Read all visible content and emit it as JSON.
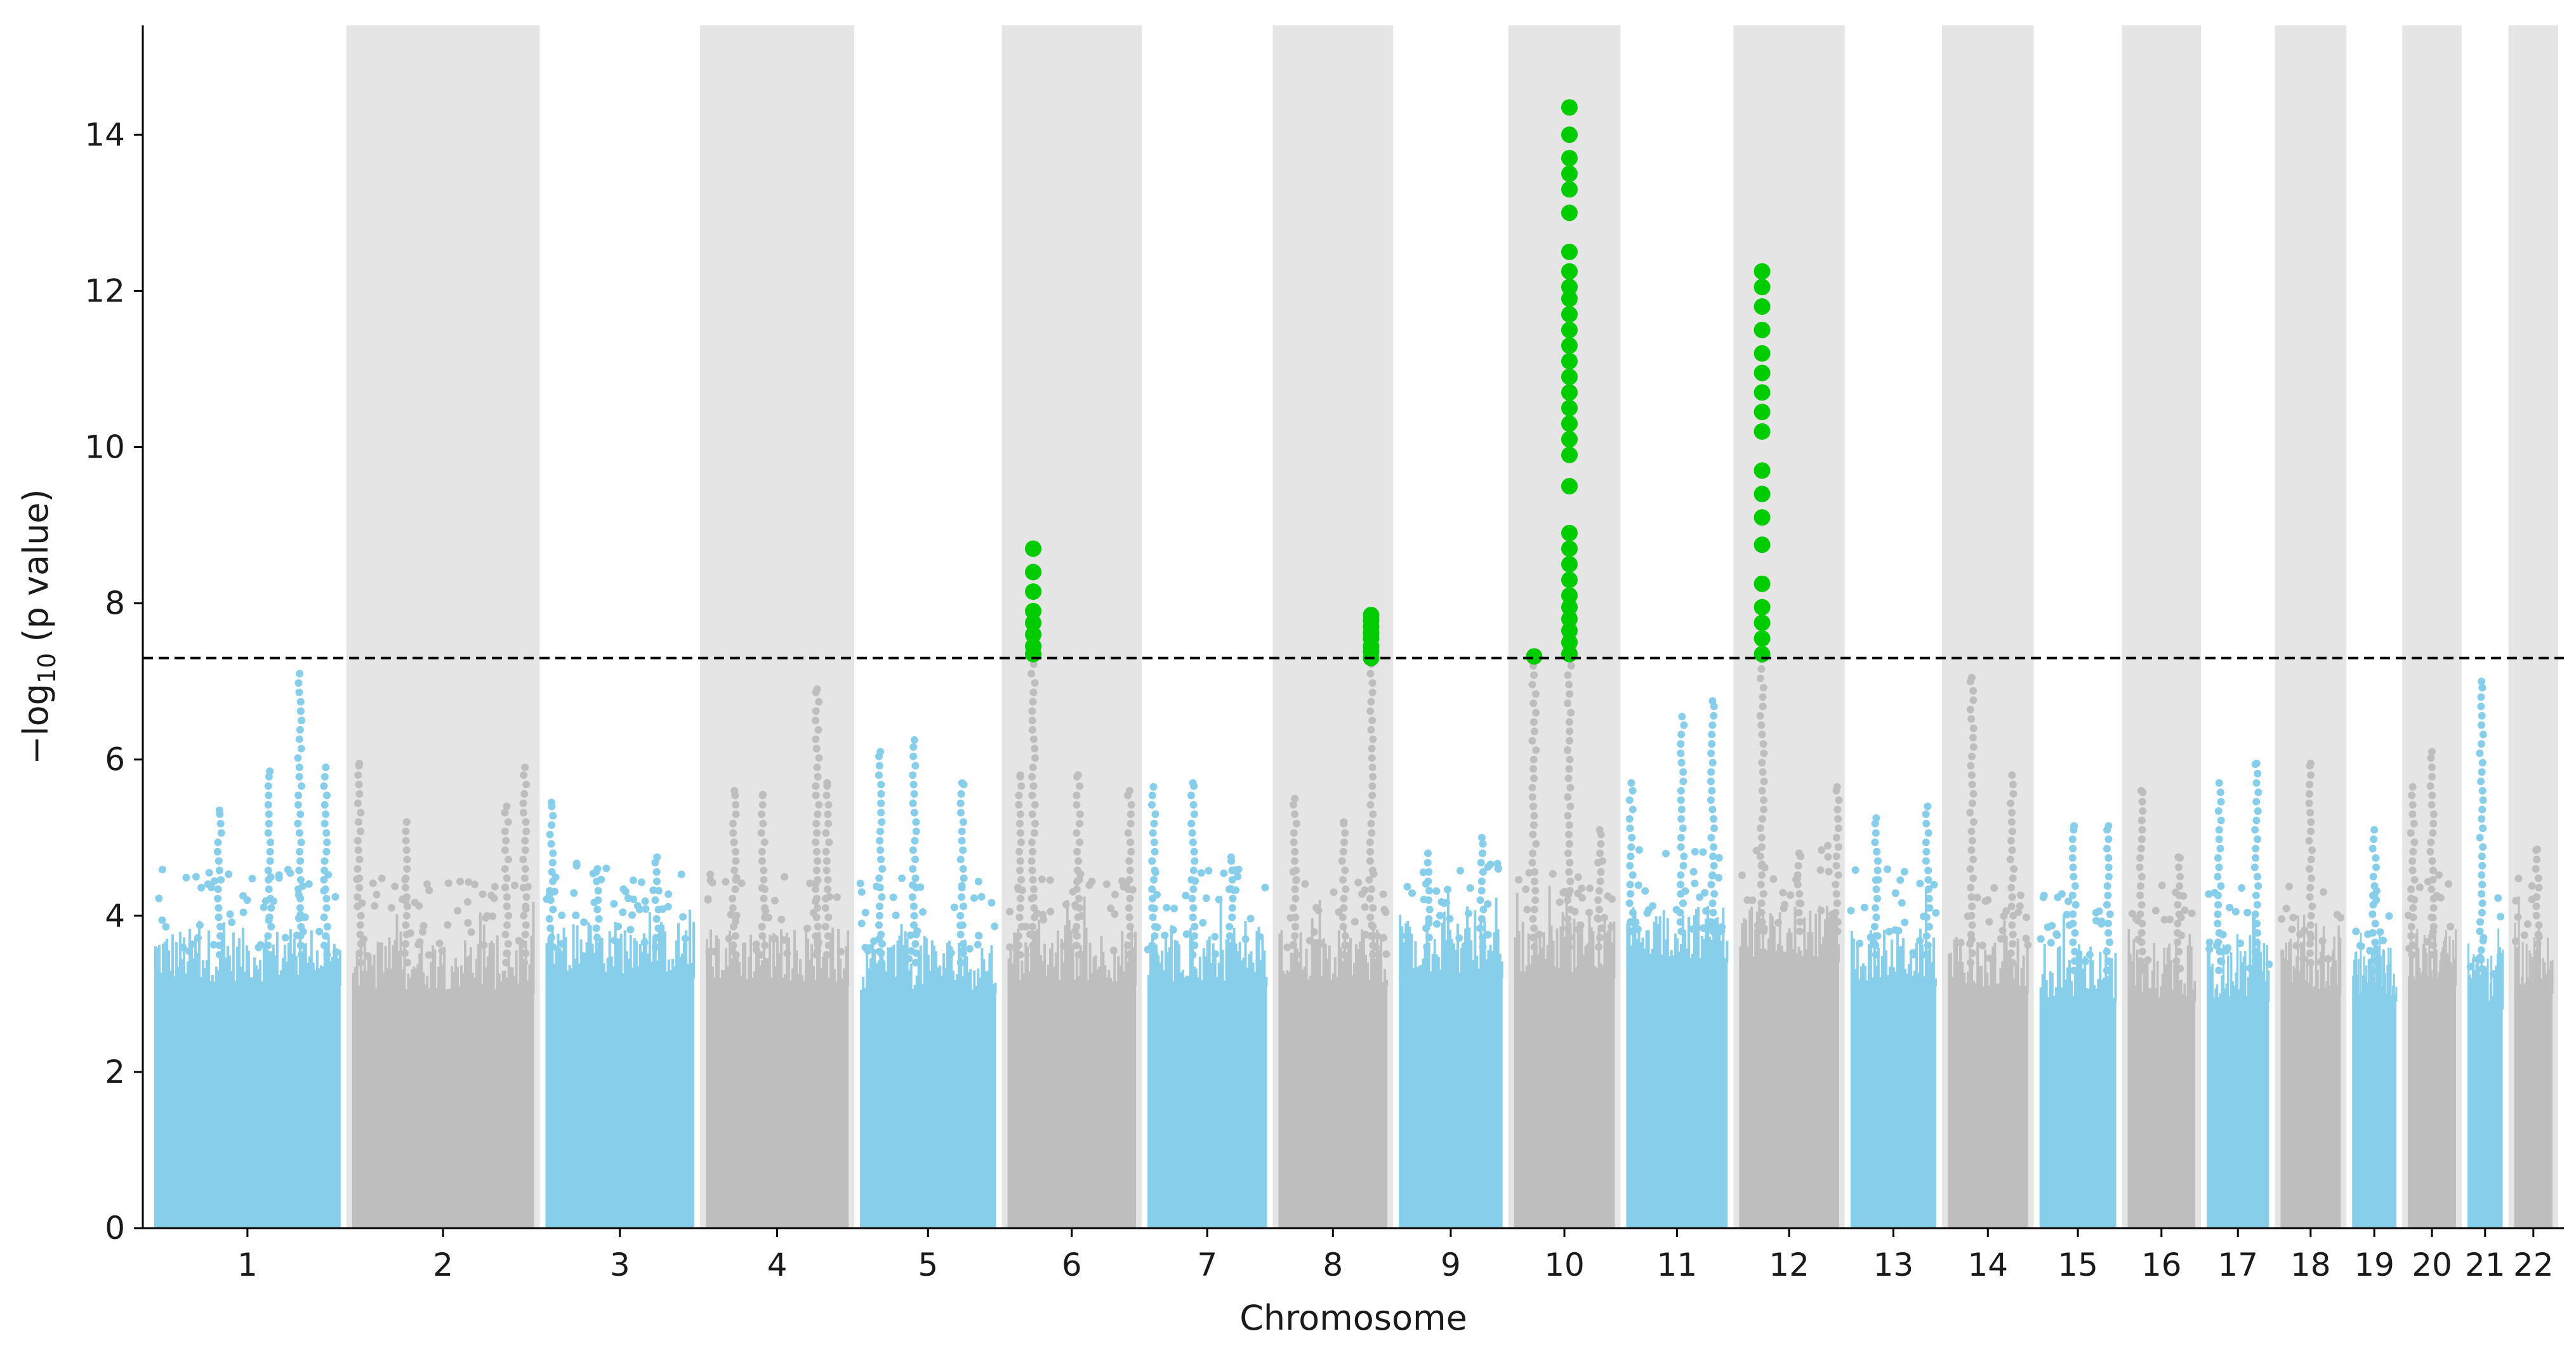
{
  "chart_data": {
    "type": "scatter",
    "subtype": "manhattan",
    "xlabel": "Chromosome",
    "ylabel_main": "−log",
    "ylabel_sub": "10",
    "ylabel_tail": " (p value)",
    "ylim": [
      0,
      15.4
    ],
    "yticks": [
      "0",
      "2",
      "4",
      "6",
      "8",
      "10",
      "12",
      "14"
    ],
    "significance_threshold": 7.3,
    "colors": {
      "odd": "#87CEEB",
      "even": "#BEBEBE",
      "significant": "#00CC00",
      "band": "#E5E5E5",
      "threshold": "#000000"
    },
    "chromosomes": [
      {
        "label": "1",
        "size": 248,
        "base": 3.5,
        "peaks": [
          {
            "pos": 0.35,
            "y": 5.35
          },
          {
            "pos": 0.78,
            "y": 7.1
          },
          {
            "pos": 0.62,
            "y": 5.85
          },
          {
            "pos": 0.92,
            "y": 5.9
          }
        ]
      },
      {
        "label": "2",
        "size": 242,
        "base": 3.4,
        "peaks": [
          {
            "pos": 0.04,
            "y": 5.95
          },
          {
            "pos": 0.3,
            "y": 5.2
          },
          {
            "pos": 0.85,
            "y": 5.4
          },
          {
            "pos": 0.95,
            "y": 5.9
          }
        ]
      },
      {
        "label": "3",
        "size": 198,
        "base": 3.6,
        "peaks": [
          {
            "pos": 0.04,
            "y": 5.45
          },
          {
            "pos": 0.35,
            "y": 4.6
          },
          {
            "pos": 0.75,
            "y": 4.75
          }
        ]
      },
      {
        "label": "4",
        "size": 190,
        "base": 3.5,
        "peaks": [
          {
            "pos": 0.2,
            "y": 5.6
          },
          {
            "pos": 0.4,
            "y": 5.55
          },
          {
            "pos": 0.78,
            "y": 6.9
          },
          {
            "pos": 0.85,
            "y": 5.7
          }
        ]
      },
      {
        "label": "5",
        "size": 181,
        "base": 3.4,
        "peaks": [
          {
            "pos": 0.15,
            "y": 6.1
          },
          {
            "pos": 0.4,
            "y": 6.25
          },
          {
            "pos": 0.75,
            "y": 5.7
          }
        ]
      },
      {
        "label": "6",
        "size": 171,
        "base": 3.5,
        "peaks": [
          {
            "pos": 0.1,
            "y": 5.8
          },
          {
            "pos": 0.2,
            "y": 7.4
          },
          {
            "pos": 0.55,
            "y": 5.8
          },
          {
            "pos": 0.95,
            "y": 5.6
          }
        ]
      },
      {
        "label": "7",
        "size": 159,
        "base": 3.5,
        "peaks": [
          {
            "pos": 0.05,
            "y": 5.65
          },
          {
            "pos": 0.38,
            "y": 5.7
          },
          {
            "pos": 0.7,
            "y": 4.75
          }
        ]
      },
      {
        "label": "8",
        "size": 145,
        "base": 3.5,
        "peaks": [
          {
            "pos": 0.15,
            "y": 5.5
          },
          {
            "pos": 0.6,
            "y": 5.2
          },
          {
            "pos": 0.85,
            "y": 7.3
          }
        ]
      },
      {
        "label": "9",
        "size": 138,
        "base": 3.6,
        "peaks": [
          {
            "pos": 0.28,
            "y": 4.8
          },
          {
            "pos": 0.8,
            "y": 5.0
          }
        ]
      },
      {
        "label": "10",
        "size": 134,
        "base": 3.6,
        "peaks": [
          {
            "pos": 0.2,
            "y": 7.3
          },
          {
            "pos": 0.55,
            "y": 7.3
          },
          {
            "pos": 0.85,
            "y": 5.1
          }
        ]
      },
      {
        "label": "11",
        "size": 135,
        "base": 3.8,
        "peaks": [
          {
            "pos": 0.05,
            "y": 5.7
          },
          {
            "pos": 0.55,
            "y": 6.55
          },
          {
            "pos": 0.85,
            "y": 6.75
          }
        ]
      },
      {
        "label": "12",
        "size": 133,
        "base": 3.8,
        "peaks": [
          {
            "pos": 0.23,
            "y": 7.3
          },
          {
            "pos": 0.6,
            "y": 4.8
          },
          {
            "pos": 0.98,
            "y": 5.65
          }
        ]
      },
      {
        "label": "13",
        "size": 114,
        "base": 3.5,
        "peaks": [
          {
            "pos": 0.3,
            "y": 5.25
          },
          {
            "pos": 0.9,
            "y": 5.4
          }
        ]
      },
      {
        "label": "14",
        "size": 107,
        "base": 3.4,
        "peaks": [
          {
            "pos": 0.3,
            "y": 7.05
          },
          {
            "pos": 0.8,
            "y": 5.8
          }
        ]
      },
      {
        "label": "15",
        "size": 102,
        "base": 3.3,
        "peaks": [
          {
            "pos": 0.45,
            "y": 5.15
          },
          {
            "pos": 0.9,
            "y": 5.15
          }
        ]
      },
      {
        "label": "16",
        "size": 90,
        "base": 3.3,
        "peaks": [
          {
            "pos": 0.2,
            "y": 5.6
          },
          {
            "pos": 0.75,
            "y": 4.75
          }
        ]
      },
      {
        "label": "17",
        "size": 83,
        "base": 3.3,
        "peaks": [
          {
            "pos": 0.2,
            "y": 5.7
          },
          {
            "pos": 0.8,
            "y": 5.95
          }
        ]
      },
      {
        "label": "18",
        "size": 80,
        "base": 3.4,
        "peaks": [
          {
            "pos": 0.5,
            "y": 5.95
          }
        ]
      },
      {
        "label": "19",
        "size": 59,
        "base": 3.3,
        "peaks": [
          {
            "pos": 0.5,
            "y": 5.1
          }
        ]
      },
      {
        "label": "20",
        "size": 64,
        "base": 3.5,
        "peaks": [
          {
            "pos": 0.1,
            "y": 5.65
          },
          {
            "pos": 0.5,
            "y": 6.1
          }
        ]
      },
      {
        "label": "21",
        "size": 47,
        "base": 3.2,
        "peaks": [
          {
            "pos": 0.4,
            "y": 7.0
          }
        ]
      },
      {
        "label": "22",
        "size": 51,
        "base": 3.4,
        "peaks": [
          {
            "pos": 0.6,
            "y": 4.85
          }
        ]
      }
    ],
    "significant_hits": [
      {
        "chr": "6",
        "pos": 0.2,
        "values": [
          7.35,
          7.45,
          7.6,
          7.75,
          7.9,
          8.15,
          8.4,
          8.7
        ]
      },
      {
        "chr": "8",
        "pos": 0.85,
        "values": [
          7.3,
          7.38,
          7.45,
          7.55,
          7.62,
          7.7,
          7.78,
          7.85
        ]
      },
      {
        "chr": "10",
        "pos": 0.2,
        "values": [
          7.32
        ]
      },
      {
        "chr": "10",
        "pos": 0.55,
        "values": [
          7.35,
          7.5,
          7.65,
          7.8,
          7.95,
          8.1,
          8.3,
          8.5,
          8.7,
          8.9,
          9.5,
          9.9,
          10.1,
          10.3,
          10.5,
          10.7,
          10.9,
          11.1,
          11.3,
          11.5,
          11.7,
          11.9,
          12.05,
          12.25,
          12.5,
          13.0,
          13.3,
          13.5,
          13.7,
          14.0,
          14.35
        ]
      },
      {
        "chr": "12",
        "pos": 0.23,
        "values": [
          7.35,
          7.55,
          7.75,
          7.95,
          8.25,
          8.75,
          9.1,
          9.4,
          9.7,
          10.2,
          10.45,
          10.7,
          10.95,
          11.2,
          11.5,
          11.8,
          12.05,
          12.25
        ]
      }
    ]
  }
}
